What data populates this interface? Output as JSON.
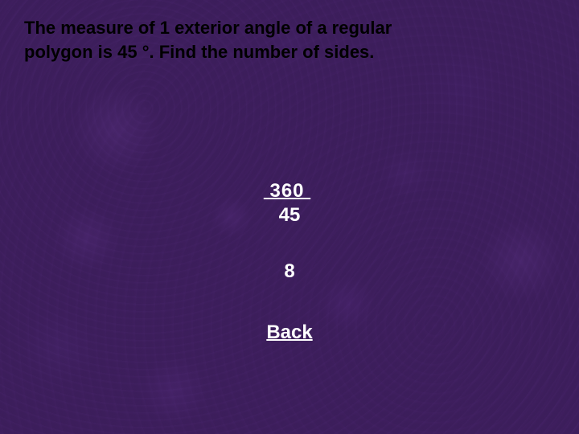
{
  "question": {
    "line1": "The measure of 1 exterior angle of a regular",
    "line2": "polygon is 45 °.  Find the number of sides."
  },
  "fraction": {
    "numerator": "360",
    "denominator": "45"
  },
  "answer": "8",
  "back_label": "Back",
  "colors": {
    "background": "#3d1e5c",
    "question_text": "#000000",
    "body_text": "#ffffff"
  },
  "typography": {
    "question_fontsize": 22,
    "body_fontsize": 24,
    "font_family": "Verdana",
    "font_weight": "bold"
  }
}
